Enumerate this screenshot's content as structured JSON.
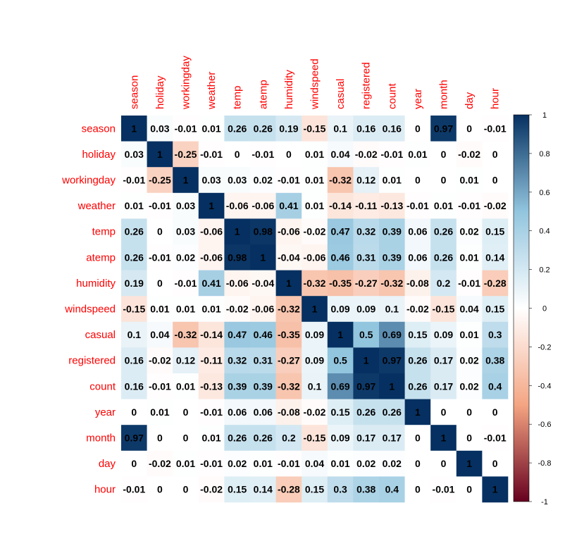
{
  "chart_data": {
    "type": "heatmap",
    "variables": [
      "season",
      "holiday",
      "workingday",
      "weather",
      "temp",
      "atemp",
      "humidity",
      "windspeed",
      "casual",
      "registered",
      "count",
      "year",
      "month",
      "day",
      "hour"
    ],
    "values": [
      [
        1,
        0.03,
        -0.01,
        0.01,
        0.26,
        0.26,
        0.19,
        -0.15,
        0.1,
        0.16,
        0.16,
        0,
        0.97,
        0,
        -0.01
      ],
      [
        0.03,
        1,
        -0.25,
        -0.01,
        0,
        -0.01,
        0,
        0.01,
        0.04,
        -0.02,
        -0.01,
        0.01,
        0,
        -0.02,
        0
      ],
      [
        -0.01,
        -0.25,
        1,
        0.03,
        0.03,
        0.02,
        -0.01,
        0.01,
        -0.32,
        0.12,
        0.01,
        0,
        0,
        0.01,
        0
      ],
      [
        0.01,
        -0.01,
        0.03,
        1,
        -0.06,
        -0.06,
        0.41,
        0.01,
        -0.14,
        -0.11,
        -0.13,
        -0.01,
        0.01,
        -0.01,
        -0.02
      ],
      [
        0.26,
        0,
        0.03,
        -0.06,
        1,
        0.98,
        -0.06,
        -0.02,
        0.47,
        0.32,
        0.39,
        0.06,
        0.26,
        0.02,
        0.15
      ],
      [
        0.26,
        -0.01,
        0.02,
        -0.06,
        0.98,
        1,
        -0.04,
        -0.06,
        0.46,
        0.31,
        0.39,
        0.06,
        0.26,
        0.01,
        0.14
      ],
      [
        0.19,
        0,
        -0.01,
        0.41,
        -0.06,
        -0.04,
        1,
        -0.32,
        -0.35,
        -0.27,
        -0.32,
        -0.08,
        0.2,
        -0.01,
        -0.28
      ],
      [
        -0.15,
        0.01,
        0.01,
        0.01,
        -0.02,
        -0.06,
        -0.32,
        1,
        0.09,
        0.09,
        0.1,
        -0.02,
        -0.15,
        0.04,
        0.15
      ],
      [
        0.1,
        0.04,
        -0.32,
        -0.14,
        0.47,
        0.46,
        -0.35,
        0.09,
        1,
        0.5,
        0.69,
        0.15,
        0.09,
        0.01,
        0.3
      ],
      [
        0.16,
        -0.02,
        0.12,
        -0.11,
        0.32,
        0.31,
        -0.27,
        0.09,
        0.5,
        1,
        0.97,
        0.26,
        0.17,
        0.02,
        0.38
      ],
      [
        0.16,
        -0.01,
        0.01,
        -0.13,
        0.39,
        0.39,
        -0.32,
        0.1,
        0.69,
        0.97,
        1,
        0.26,
        0.17,
        0.02,
        0.4
      ],
      [
        0,
        0.01,
        0,
        -0.01,
        0.06,
        0.06,
        -0.08,
        -0.02,
        0.15,
        0.26,
        0.26,
        1,
        0,
        0,
        0
      ],
      [
        0.97,
        0,
        0,
        0.01,
        0.26,
        0.26,
        0.2,
        -0.15,
        0.09,
        0.17,
        0.17,
        0,
        1,
        0,
        -0.01
      ],
      [
        0,
        -0.02,
        0.01,
        -0.01,
        0.02,
        0.01,
        -0.01,
        0.04,
        0.01,
        0.02,
        0.02,
        0,
        0,
        1,
        0
      ],
      [
        -0.01,
        0,
        0,
        -0.02,
        0.15,
        0.14,
        -0.28,
        0.15,
        0.3,
        0.38,
        0.4,
        0,
        -0.01,
        0,
        1
      ]
    ],
    "value_range": [
      -1,
      1
    ],
    "colorbar_ticks": [
      "1",
      "0.8",
      "0.6",
      "0.4",
      "0.2",
      "0",
      "-0.2",
      "-0.4",
      "-0.6",
      "-0.8",
      "-1"
    ],
    "colorbar_tick_values": [
      1,
      0.8,
      0.6,
      0.4,
      0.2,
      0,
      -0.2,
      -0.4,
      -0.6,
      -0.8,
      -1
    ],
    "color_scale": {
      "negative_end": "#67001F",
      "mid_negative": "#F4A582",
      "zero": "#FFFFFF",
      "mid_positive": "#92C5DE",
      "positive_end": "#053061"
    },
    "label_color": "#FF0000",
    "colorbar_position": "right"
  }
}
